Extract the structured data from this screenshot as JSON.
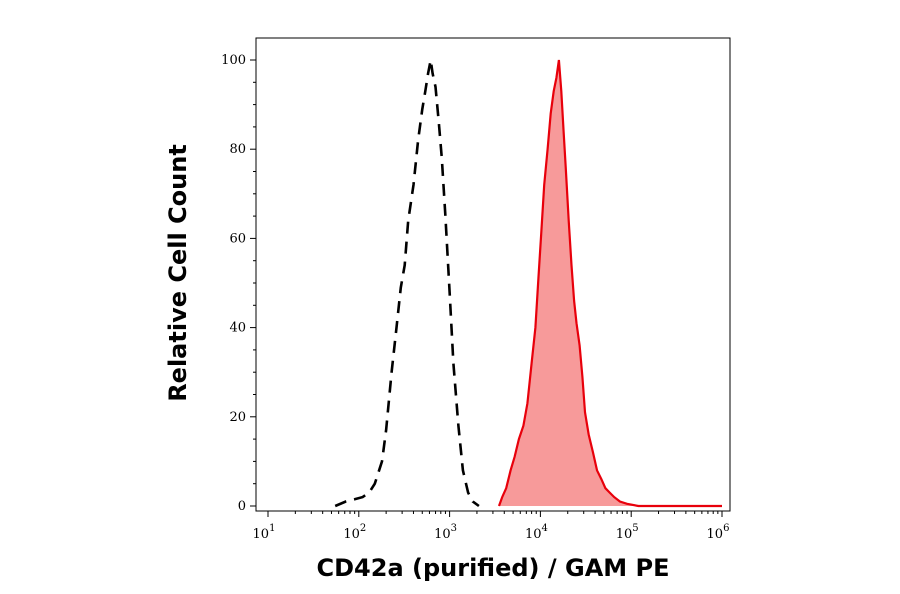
{
  "chart_data": {
    "type": "area",
    "xlabel": "CD42a (purified) / GAM PE",
    "ylabel": "Relative Cell Count",
    "x_scale": "log",
    "xlim": [
      10,
      1000000
    ],
    "ylim": [
      0,
      100
    ],
    "x_ticks": [
      {
        "base": "10",
        "exp": "1",
        "value": 10
      },
      {
        "base": "10",
        "exp": "2",
        "value": 100
      },
      {
        "base": "10",
        "exp": "3",
        "value": 1000
      },
      {
        "base": "10",
        "exp": "4",
        "value": 10000
      },
      {
        "base": "10",
        "exp": "5",
        "value": 100000
      },
      {
        "base": "10",
        "exp": "6",
        "value": 1000000
      }
    ],
    "y_ticks": [
      "0",
      "20",
      "40",
      "60",
      "80",
      "100"
    ],
    "grid": false,
    "legend": "none",
    "series": [
      {
        "style": "dashed",
        "color": "#000000",
        "filled": false,
        "x": [
          55,
          72,
          90,
          110,
          130,
          150,
          180,
          200,
          230,
          260,
          290,
          320,
          350,
          400,
          450,
          500,
          540,
          580,
          620,
          650,
          700,
          760,
          820,
          900,
          1000,
          1100,
          1250,
          1400,
          1600,
          1800,
          2100
        ],
        "y": [
          0,
          1,
          1.5,
          2,
          3,
          5,
          10,
          17,
          30,
          40,
          49,
          54,
          64,
          72,
          82,
          89,
          93,
          97,
          100,
          97,
          94,
          86,
          78,
          65,
          48,
          32,
          18,
          8,
          3,
          1,
          0
        ]
      },
      {
        "style": "solid",
        "color": "#e8000b",
        "fill": "#f79a9a",
        "filled": true,
        "x": [
          3500,
          3800,
          4200,
          4700,
          5200,
          5800,
          6500,
          7200,
          8000,
          8800,
          9500,
          10200,
          11000,
          12000,
          13000,
          14000,
          15000,
          16000,
          17000,
          18000,
          19000,
          20500,
          22000,
          23500,
          25000,
          27000,
          29000,
          31000,
          34000,
          38000,
          42000,
          47000,
          52000,
          58000,
          65000,
          75000,
          90000,
          120000,
          1000000
        ],
        "y": [
          0,
          2,
          4,
          8,
          11,
          15,
          18,
          23,
          32,
          40,
          51,
          61,
          72,
          80,
          88,
          93,
          96,
          100,
          93,
          84,
          76,
          64,
          54,
          46,
          41,
          36,
          29,
          21,
          16,
          12,
          8,
          6,
          4,
          3,
          2,
          1,
          0.5,
          0,
          0
        ]
      }
    ]
  }
}
